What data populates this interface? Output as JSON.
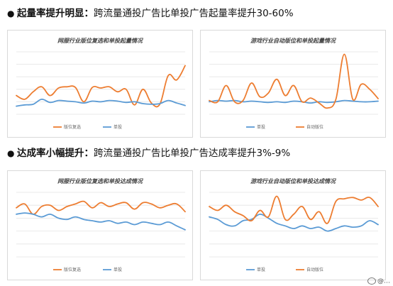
{
  "sections": [
    {
      "bullet": "●",
      "bold": "起量率提升明显：",
      "rest": "跨流量通投广告比单投广告起量率提升30-60%"
    },
    {
      "bullet": "●",
      "bold": "达成率小幅提升：",
      "rest": "跨流量通投广告比单投广告达成率提升3%-9%"
    }
  ],
  "watermark": "@…",
  "colors": {
    "orange": "#ed7d31",
    "blue": "#5b9bd5",
    "grid": "#e3e3e3"
  },
  "chart_data": [
    {
      "type": "line",
      "title": "网服行业版位复选和单投起量情况",
      "series": [
        {
          "name": "版位复选",
          "color": "#ed7d31",
          "values": [
            0.3,
            0.24,
            0.36,
            0.44,
            0.3,
            0.42,
            0.44,
            0.43,
            0.2,
            0.43,
            0.42,
            0.44,
            0.36,
            0.4,
            0.15,
            0.4,
            0.18,
            0.16,
            0.62,
            0.55,
            0.78
          ]
        },
        {
          "name": "单投",
          "color": "#5b9bd5",
          "values": [
            0.13,
            0.15,
            0.16,
            0.24,
            0.19,
            0.22,
            0.21,
            0.2,
            0.18,
            0.21,
            0.2,
            0.22,
            0.21,
            0.19,
            0.2,
            0.17,
            0.16,
            0.17,
            0.22,
            0.18,
            0.14
          ]
        }
      ],
      "ylim": [
        0,
        1
      ]
    },
    {
      "type": "line",
      "title": "游戏行业自动版位和单投起量情况",
      "series": [
        {
          "name": "单投",
          "color": "#5b9bd5",
          "values": [
            0.2,
            0.22,
            0.21,
            0.22,
            0.2,
            0.21,
            0.2,
            0.19,
            0.2,
            0.19,
            0.21,
            0.2,
            0.18,
            0.2,
            0.19,
            0.2,
            0.22,
            0.21,
            0.2,
            0.2,
            0.21
          ]
        },
        {
          "name": "自动版位",
          "color": "#ed7d31",
          "values": [
            0.22,
            0.2,
            0.46,
            0.2,
            0.22,
            0.5,
            0.28,
            0.34,
            0.56,
            0.3,
            0.46,
            0.2,
            0.26,
            0.18,
            0.1,
            0.24,
            0.96,
            0.24,
            0.48,
            0.4,
            0.25
          ]
        }
      ],
      "ylim": [
        0,
        1
      ]
    },
    {
      "type": "line",
      "title": "网服行业版位复选和单投达成情况",
      "series": [
        {
          "name": "版位复选",
          "color": "#ed7d31",
          "values": [
            0.76,
            0.82,
            0.66,
            0.78,
            0.8,
            0.72,
            0.78,
            0.82,
            0.86,
            0.76,
            0.84,
            0.78,
            0.82,
            0.84,
            0.74,
            0.84,
            0.82,
            0.76,
            0.8,
            0.82,
            0.7
          ]
        },
        {
          "name": "单投",
          "color": "#5b9bd5",
          "values": [
            0.66,
            0.68,
            0.66,
            0.62,
            0.66,
            0.6,
            0.58,
            0.62,
            0.58,
            0.56,
            0.54,
            0.56,
            0.52,
            0.54,
            0.5,
            0.54,
            0.52,
            0.5,
            0.54,
            0.48,
            0.42
          ]
        }
      ],
      "ylim": [
        0,
        1
      ]
    },
    {
      "type": "line",
      "title": "游戏行业自动版位和单投达成情况",
      "series": [
        {
          "name": "单投",
          "color": "#5b9bd5",
          "values": [
            0.62,
            0.58,
            0.5,
            0.48,
            0.56,
            0.58,
            0.66,
            0.6,
            0.52,
            0.48,
            0.44,
            0.48,
            0.44,
            0.46,
            0.4,
            0.44,
            0.48,
            0.46,
            0.48,
            0.56,
            0.5
          ]
        },
        {
          "name": "自动版位",
          "color": "#ed7d31",
          "values": [
            0.78,
            0.72,
            0.8,
            0.7,
            0.64,
            0.56,
            0.72,
            0.62,
            0.94,
            0.58,
            0.66,
            0.78,
            0.58,
            0.7,
            0.52,
            0.86,
            0.9,
            0.92,
            0.88,
            0.92,
            0.78
          ]
        }
      ],
      "ylim": [
        0,
        1
      ]
    }
  ]
}
